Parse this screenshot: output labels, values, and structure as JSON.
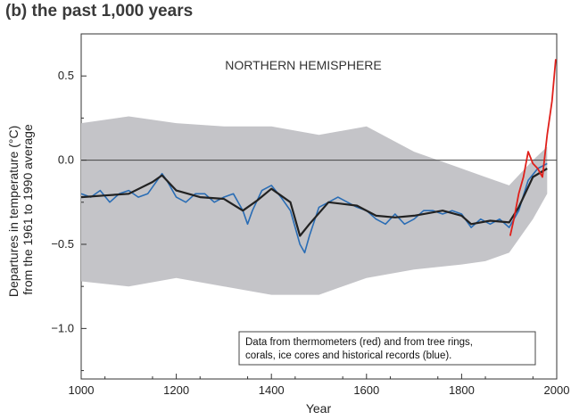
{
  "chart_data": {
    "type": "line",
    "title": "(b) the past 1,000 years",
    "xlabel": "Year",
    "ylabel": [
      "Departures in temperature (°C)",
      "from the 1961 to 1990 average"
    ],
    "xlim": [
      1000,
      2000
    ],
    "ylim": [
      -1.3,
      0.75
    ],
    "x_ticks": [
      1000,
      1200,
      1400,
      1600,
      1800,
      2000
    ],
    "y_ticks": [
      -1.0,
      -0.5,
      0.0,
      0.5
    ],
    "y_tick_labels": [
      "−1.0",
      "−0.5",
      "0.0",
      "0.5"
    ],
    "grid": false,
    "annotation": "NORTHERN HEMISPHERE",
    "note_lines": [
      "Data from thermometers (red) and from tree rings,",
      "corals, ice cores and historical records (blue)."
    ],
    "colors": {
      "proxy": "#2a6db5",
      "smoothed": "#222222",
      "instrumental": "#e0201b",
      "uncertainty": "#c4c4c8",
      "zero_line": "#444444"
    },
    "series": [
      {
        "key": "proxy_blue",
        "x": [
          1000,
          1020,
          1040,
          1060,
          1080,
          1100,
          1120,
          1140,
          1160,
          1170,
          1180,
          1200,
          1220,
          1240,
          1260,
          1280,
          1300,
          1320,
          1340,
          1350,
          1360,
          1380,
          1400,
          1420,
          1440,
          1460,
          1470,
          1480,
          1500,
          1520,
          1540,
          1560,
          1580,
          1600,
          1620,
          1640,
          1660,
          1680,
          1700,
          1720,
          1740,
          1760,
          1780,
          1800,
          1820,
          1840,
          1860,
          1880,
          1900,
          1920,
          1940,
          1960,
          1980
        ],
        "values": [
          -0.2,
          -0.22,
          -0.18,
          -0.25,
          -0.2,
          -0.18,
          -0.22,
          -0.2,
          -0.12,
          -0.08,
          -0.12,
          -0.22,
          -0.25,
          -0.2,
          -0.2,
          -0.25,
          -0.22,
          -0.2,
          -0.3,
          -0.38,
          -0.3,
          -0.18,
          -0.15,
          -0.22,
          -0.3,
          -0.5,
          -0.55,
          -0.45,
          -0.28,
          -0.25,
          -0.22,
          -0.25,
          -0.28,
          -0.3,
          -0.35,
          -0.38,
          -0.32,
          -0.38,
          -0.35,
          -0.3,
          -0.3,
          -0.32,
          -0.3,
          -0.32,
          -0.4,
          -0.35,
          -0.38,
          -0.35,
          -0.4,
          -0.3,
          -0.12,
          -0.05,
          -0.02
        ]
      },
      {
        "key": "smoothed_black",
        "x": [
          1000,
          1050,
          1100,
          1150,
          1170,
          1200,
          1250,
          1300,
          1340,
          1370,
          1400,
          1440,
          1460,
          1480,
          1520,
          1580,
          1620,
          1660,
          1700,
          1760,
          1800,
          1820,
          1860,
          1900,
          1920,
          1950,
          1980
        ],
        "values": [
          -0.22,
          -0.21,
          -0.2,
          -0.13,
          -0.09,
          -0.18,
          -0.22,
          -0.23,
          -0.3,
          -0.24,
          -0.17,
          -0.25,
          -0.45,
          -0.38,
          -0.25,
          -0.27,
          -0.33,
          -0.34,
          -0.33,
          -0.3,
          -0.33,
          -0.38,
          -0.36,
          -0.37,
          -0.28,
          -0.1,
          -0.05
        ]
      },
      {
        "key": "instrumental_red",
        "x": [
          1902,
          1910,
          1920,
          1930,
          1940,
          1950,
          1960,
          1970,
          1980,
          1990,
          1998
        ],
        "values": [
          -0.45,
          -0.35,
          -0.2,
          -0.1,
          0.05,
          -0.02,
          -0.05,
          -0.1,
          0.15,
          0.35,
          0.6
        ]
      },
      {
        "key": "uncertainty_band",
        "x": [
          1000,
          1100,
          1200,
          1300,
          1400,
          1500,
          1600,
          1700,
          1800,
          1850,
          1900,
          1950,
          1980
        ],
        "upper": [
          0.22,
          0.26,
          0.22,
          0.2,
          0.2,
          0.15,
          0.2,
          0.05,
          -0.05,
          -0.1,
          -0.15,
          0.0,
          0.08
        ],
        "lower": [
          -0.72,
          -0.75,
          -0.7,
          -0.75,
          -0.8,
          -0.8,
          -0.7,
          -0.65,
          -0.62,
          -0.6,
          -0.55,
          -0.35,
          -0.2
        ]
      }
    ]
  }
}
